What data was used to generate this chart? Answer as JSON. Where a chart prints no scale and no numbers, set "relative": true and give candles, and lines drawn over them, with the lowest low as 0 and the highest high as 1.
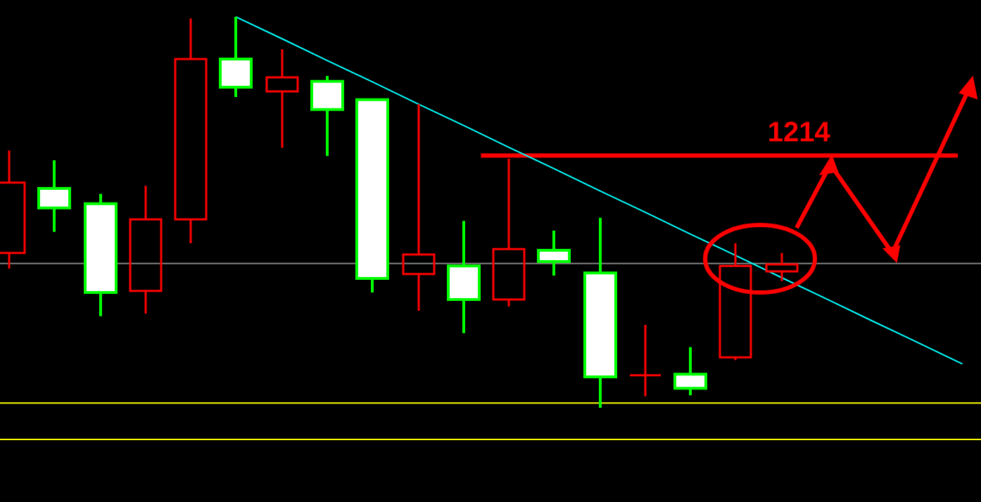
{
  "chart_data": {
    "type": "candlestick",
    "relative": true,
    "legend": false,
    "tick_labels": false,
    "annotations": [
      "1214"
    ],
    "categories": [
      null,
      null,
      null,
      null,
      null,
      null,
      null,
      null,
      null,
      null,
      null,
      null,
      null,
      null,
      null,
      null,
      null,
      null,
      null,
      null,
      null,
      null
    ],
    "series": [
      {
        "type": "candlestick",
        "color": "#00ff00",
        "colors": [
          "#ff0000",
          "#ffffff",
          "#ffffff",
          "#ff0000",
          "#ff0000",
          "#ffffff",
          "#ff0000",
          "#ffffff",
          "#ffffff",
          "#ff0000",
          "#ffffff",
          "#ff0000",
          "#ffffff",
          "#ffffff",
          "#ff0000",
          "#ffffff",
          "#ff0000",
          "#ff0000",
          null,
          null,
          null,
          null
        ],
        "ohlc": [
          [
            0.396,
            0.658,
            0.356,
            0.576
          ],
          [
            0.561,
            0.633,
            0.45,
            0.511
          ],
          [
            0.522,
            0.547,
            0.234,
            0.295
          ],
          [
            0.299,
            0.568,
            0.241,
            0.482
          ],
          [
            0.482,
            0.996,
            0.421,
            0.892
          ],
          [
            0.892,
            1,
            0.795,
            0.82
          ],
          [
            0.809,
            0.917,
            0.665,
            0.845
          ],
          [
            0.835,
            0.849,
            0.644,
            0.763
          ],
          [
            0.788,
            0.791,
            0.295,
            0.331
          ],
          [
            0.342,
            0.777,
            0.248,
            0.392
          ],
          [
            0.363,
            0.478,
            0.191,
            0.277
          ],
          [
            0.277,
            0.637,
            0.259,
            0.406
          ],
          [
            0.403,
            0.453,
            0.338,
            0.374
          ],
          [
            0.345,
            0.486,
            0,
            0.079
          ],
          [
            0.083,
            0.212,
            0.029,
            0.083
          ],
          [
            0.086,
            0.155,
            0.032,
            0.05
          ],
          [
            0.129,
            0.421,
            0.122,
            0.363
          ],
          [
            0.349,
            0.396,
            0.324,
            0.367
          ],
          null,
          null,
          null,
          null
        ]
      },
      {
        "type": "line",
        "color": "#00ffff",
        "values": [
          null,
          null,
          null,
          null,
          null,
          1,
          0.945,
          0.889,
          0.834,
          0.778,
          0.723,
          0.667,
          0.612,
          0.556,
          0.501,
          0.445,
          0.39,
          0.334,
          0.279,
          0.223,
          0.168,
          0.112
        ]
      }
    ],
    "ref_lines": [
      {
        "axis": "y",
        "value": 0.371,
        "color": "#808080"
      },
      {
        "axis": "y",
        "value": 0.014,
        "color": "#ffff00"
      },
      {
        "axis": "y",
        "value": -0.079,
        "color": "#ffff00"
      },
      {
        "axis": "y",
        "value": 0.647,
        "color": "#ff0000",
        "line_style": "solid"
      }
    ]
  }
}
